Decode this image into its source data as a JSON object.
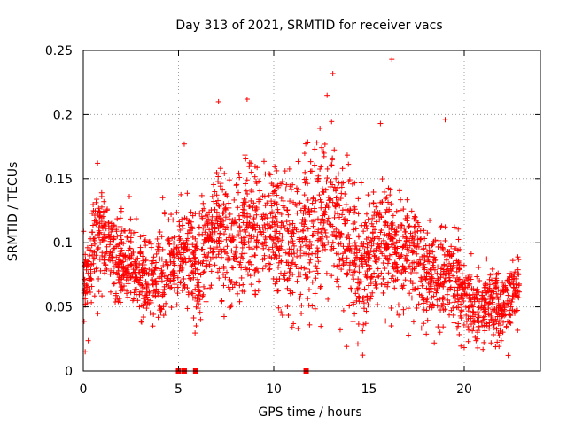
{
  "chart_data": {
    "type": "scatter",
    "title": "Day 313 of 2021, SRMTID for receiver vacs",
    "xlabel": "GPS time / hours",
    "ylabel": "SRMTID / TECUs",
    "xlim": [
      0,
      24
    ],
    "ylim": [
      0,
      0.25
    ],
    "xticks": [
      0,
      5,
      10,
      15,
      20
    ],
    "xtick_labels": [
      "0",
      "5",
      "10",
      "15",
      "20"
    ],
    "yticks": [
      0,
      0.05,
      0.1,
      0.15,
      0.2,
      0.25
    ],
    "ytick_labels": [
      "0",
      "0.05",
      "0.1",
      "0.15",
      "0.2",
      "0.25"
    ],
    "grid": true,
    "marker": "plus",
    "color": "#ff0000",
    "series": [
      {
        "name": "SRMTID",
        "envelope_note": "approximate running mean/spread read from the dense point cloud (x in hours, y in TECU)",
        "trend": [
          [
            0.0,
            0.065
          ],
          [
            0.5,
            0.095
          ],
          [
            1.0,
            0.11
          ],
          [
            1.5,
            0.09
          ],
          [
            2.0,
            0.085
          ],
          [
            2.5,
            0.08
          ],
          [
            3.0,
            0.075
          ],
          [
            3.5,
            0.07
          ],
          [
            4.0,
            0.075
          ],
          [
            4.5,
            0.085
          ],
          [
            5.0,
            0.09
          ],
          [
            5.5,
            0.085
          ],
          [
            6.0,
            0.08
          ],
          [
            6.5,
            0.095
          ],
          [
            7.0,
            0.11
          ],
          [
            7.5,
            0.1
          ],
          [
            8.0,
            0.095
          ],
          [
            8.5,
            0.11
          ],
          [
            9.0,
            0.105
          ],
          [
            9.5,
            0.11
          ],
          [
            10.0,
            0.11
          ],
          [
            10.5,
            0.1
          ],
          [
            11.0,
            0.095
          ],
          [
            11.5,
            0.105
          ],
          [
            12.0,
            0.11
          ],
          [
            12.5,
            0.12
          ],
          [
            13.0,
            0.125
          ],
          [
            13.5,
            0.11
          ],
          [
            14.0,
            0.09
          ],
          [
            14.5,
            0.085
          ],
          [
            15.0,
            0.09
          ],
          [
            15.5,
            0.095
          ],
          [
            16.0,
            0.1
          ],
          [
            16.5,
            0.095
          ],
          [
            17.0,
            0.09
          ],
          [
            17.5,
            0.085
          ],
          [
            18.0,
            0.075
          ],
          [
            18.5,
            0.07
          ],
          [
            19.0,
            0.075
          ],
          [
            19.5,
            0.065
          ],
          [
            20.0,
            0.06
          ],
          [
            20.5,
            0.05
          ],
          [
            21.0,
            0.045
          ],
          [
            21.5,
            0.055
          ],
          [
            22.0,
            0.05
          ],
          [
            22.5,
            0.06
          ],
          [
            22.9,
            0.06
          ]
        ],
        "spread": [
          [
            0.0,
            0.035
          ],
          [
            1.0,
            0.04
          ],
          [
            3.0,
            0.04
          ],
          [
            5.0,
            0.04
          ],
          [
            7.0,
            0.055
          ],
          [
            9.0,
            0.055
          ],
          [
            12.5,
            0.065
          ],
          [
            15.0,
            0.055
          ],
          [
            17.0,
            0.045
          ],
          [
            19.0,
            0.04
          ],
          [
            21.0,
            0.03
          ],
          [
            22.9,
            0.03
          ]
        ],
        "outliers": [
          [
            16.2,
            0.243
          ],
          [
            13.1,
            0.232
          ],
          [
            12.8,
            0.215
          ],
          [
            8.6,
            0.212
          ],
          [
            7.1,
            0.21
          ],
          [
            19.0,
            0.196
          ],
          [
            15.6,
            0.193
          ],
          [
            0.75,
            0.162
          ],
          [
            5.3,
            0.177
          ],
          [
            0.1,
            0.015
          ]
        ],
        "zero_points": [
          5.0,
          5.3,
          5.9,
          11.7
        ]
      }
    ]
  }
}
